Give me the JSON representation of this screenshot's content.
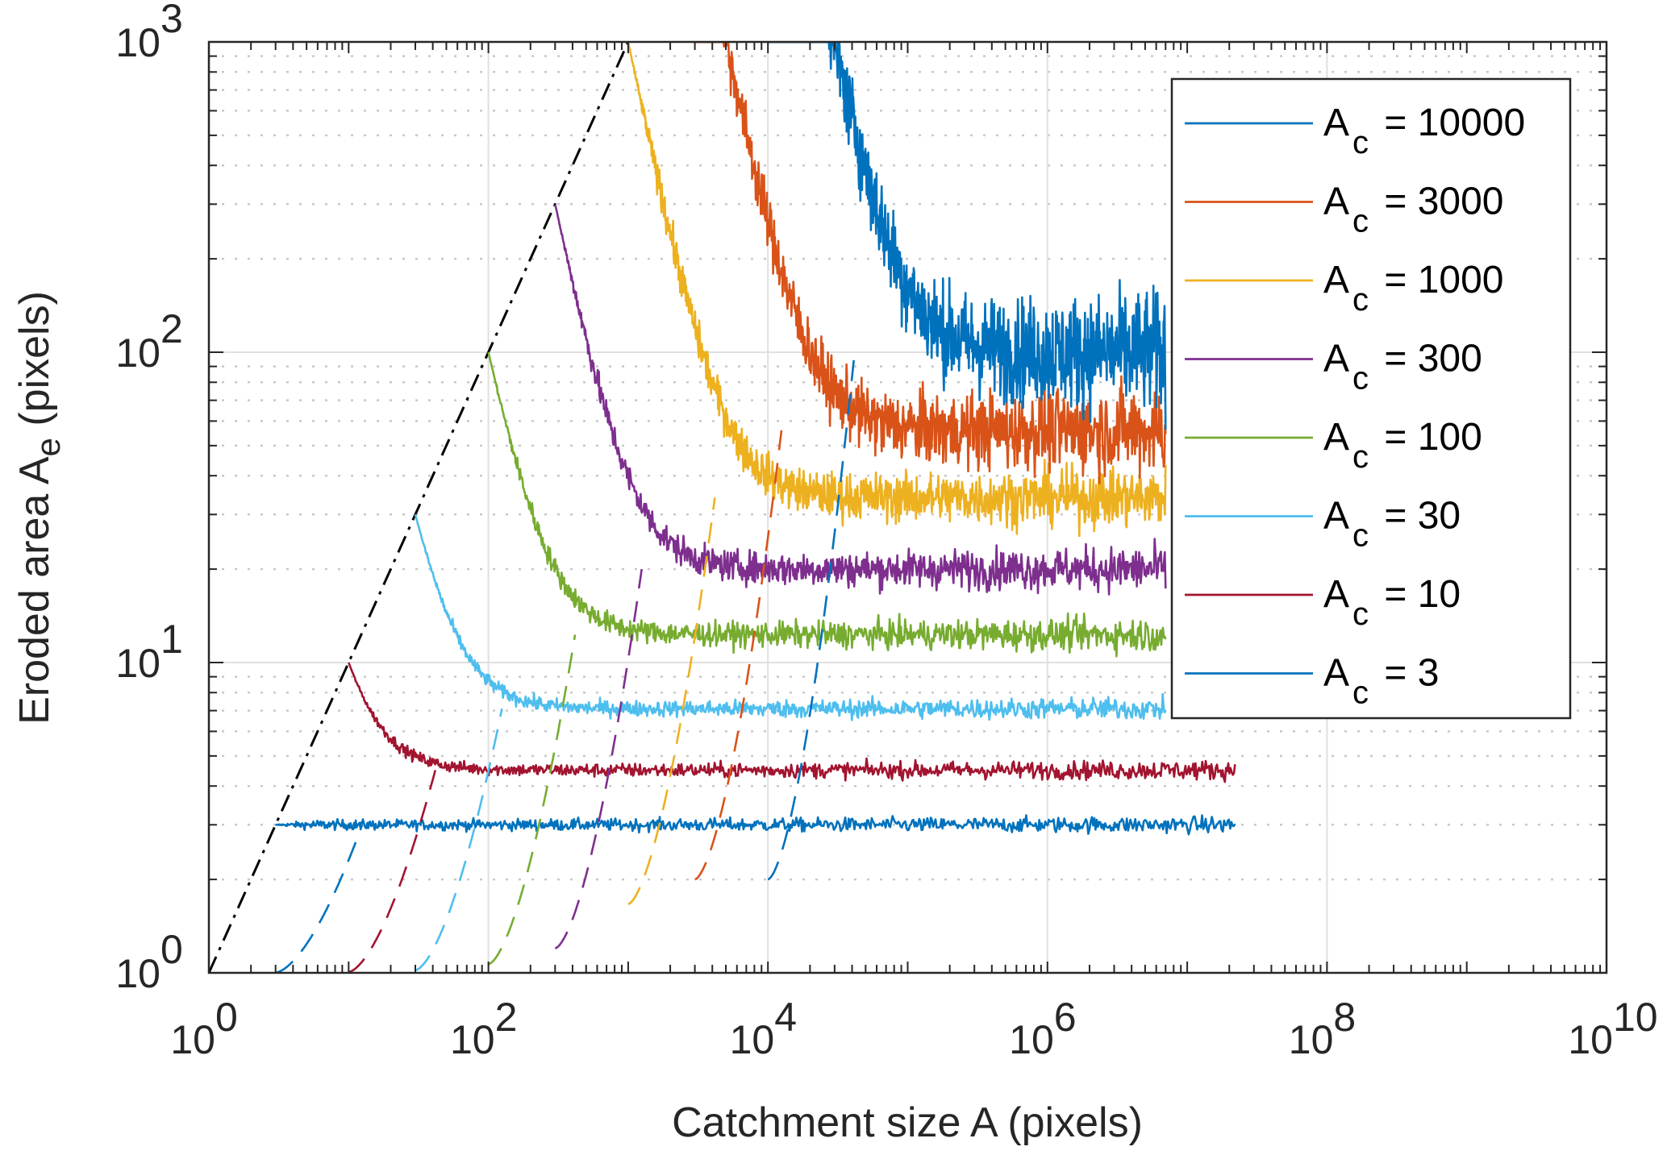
{
  "chart_data": {
    "type": "line",
    "title": "",
    "xlabel": "Catchment size A (pixels)",
    "ylabel_main": "Eroded area A",
    "ylabel_sub": "e",
    "ylabel_tail": " (pixels)",
    "xscale": "log",
    "yscale": "log",
    "xlim": [
      1,
      10000000000
    ],
    "ylim": [
      1,
      1000
    ],
    "grid": true,
    "minor_grid": true,
    "legend_position": "top-right",
    "x_ticks": [
      {
        "base": "10",
        "exp": "0",
        "value": 1
      },
      {
        "base": "10",
        "exp": "2",
        "value": 100
      },
      {
        "base": "10",
        "exp": "4",
        "value": 10000
      },
      {
        "base": "10",
        "exp": "6",
        "value": 1000000
      },
      {
        "base": "10",
        "exp": "8",
        "value": 100000000
      },
      {
        "base": "10",
        "exp": "10",
        "value": 10000000000
      }
    ],
    "y_ticks": [
      {
        "base": "10",
        "exp": "0",
        "value": 1
      },
      {
        "base": "10",
        "exp": "1",
        "value": 10
      },
      {
        "base": "10",
        "exp": "2",
        "value": 100
      },
      {
        "base": "10",
        "exp": "3",
        "value": 1000
      }
    ],
    "reference_line": {
      "name": "A_e = A",
      "style": "dash-dot",
      "color": "#000000",
      "x_range": [
        1,
        1000
      ]
    },
    "series": [
      {
        "name": "A_c = 10000",
        "label_main": "A",
        "label_sub": "c",
        "label_value": " = 10000",
        "Ac": 10000,
        "plateau": 100,
        "noise": 0.22,
        "x_end": 7000000,
        "color": "#0072BD"
      },
      {
        "name": "A_c = 3000",
        "label_main": "A",
        "label_sub": "c",
        "label_value": " = 3000",
        "Ac": 3000,
        "plateau": 56,
        "noise": 0.16,
        "x_end": 7000000,
        "color": "#D95319"
      },
      {
        "name": "A_c = 1000",
        "label_main": "A",
        "label_sub": "c",
        "label_value": " = 1000",
        "Ac": 1000,
        "plateau": 34,
        "noise": 0.11,
        "x_end": 7000000,
        "color": "#EDB120"
      },
      {
        "name": "A_c = 300",
        "label_main": "A",
        "label_sub": "c",
        "label_value": " = 300",
        "Ac": 300,
        "plateau": 20,
        "noise": 0.08,
        "x_end": 7000000,
        "color": "#7E2F8E"
      },
      {
        "name": "A_c = 100",
        "label_main": "A",
        "label_sub": "c",
        "label_value": " = 100",
        "Ac": 100,
        "plateau": 12.3,
        "noise": 0.06,
        "x_end": 7000000,
        "color": "#77AC30"
      },
      {
        "name": "A_c = 30",
        "label_main": "A",
        "label_sub": "c",
        "label_value": " = 30",
        "Ac": 30,
        "plateau": 7.1,
        "noise": 0.04,
        "x_end": 7000000,
        "color": "#4DBEEE"
      },
      {
        "name": "A_c = 10",
        "label_main": "A",
        "label_sub": "c",
        "label_value": " = 10",
        "Ac": 10,
        "plateau": 4.5,
        "noise": 0.035,
        "x_end": 22000000,
        "color": "#A2142F"
      },
      {
        "name": "A_c = 3",
        "label_main": "A",
        "label_sub": "c",
        "label_value": " = 3",
        "Ac": 3,
        "plateau": 3.0,
        "noise": 0.03,
        "x_end": 22000000,
        "color": "#0072BD"
      }
    ]
  }
}
